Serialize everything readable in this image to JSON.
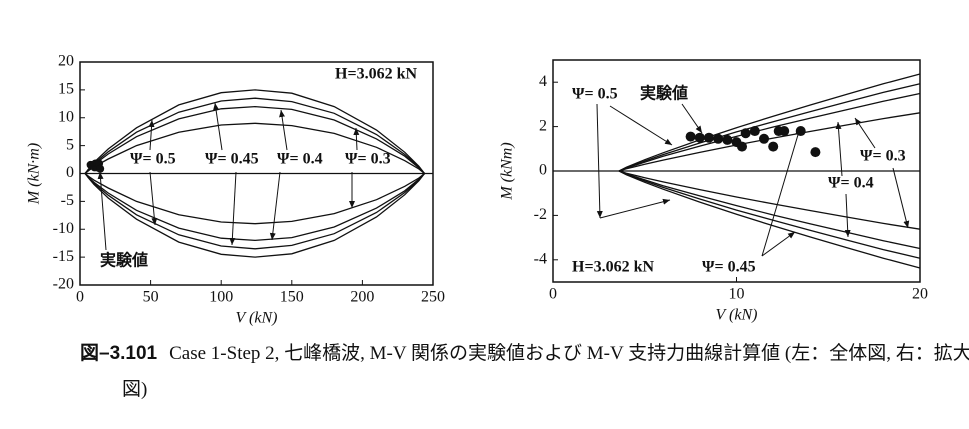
{
  "chart_data": [
    {
      "type": "line",
      "xlabel": "V (kN)",
      "ylabel": "M (kN·m)",
      "xlim": [
        0,
        250
      ],
      "ylim": [
        -20,
        20
      ],
      "xticks": [
        0,
        50,
        100,
        150,
        200,
        250
      ],
      "yticks": [
        -20,
        -15,
        -10,
        -5,
        0,
        5,
        10,
        15,
        20
      ],
      "x": [
        3.6,
        6,
        10,
        20,
        40,
        70,
        100,
        124,
        150,
        180,
        210,
        230,
        240,
        244
      ],
      "series": [
        {
          "color": "#111",
          "values": [
            0,
            0.8,
            2.0,
            4.4,
            8.2,
            12.3,
            14.5,
            15,
            14.4,
            12.0,
            7.8,
            3.8,
            1.3,
            0
          ]
        },
        {
          "color": "#111",
          "values": [
            0,
            0.7,
            1.8,
            3.9,
            7.4,
            11.0,
            13.0,
            13.5,
            12.9,
            10.8,
            7.0,
            3.4,
            1.2,
            0
          ]
        },
        {
          "color": "#111",
          "values": [
            0,
            0.7,
            1.6,
            3.5,
            6.6,
            9.8,
            11.6,
            12,
            11.5,
            9.6,
            6.2,
            3.1,
            1.0,
            0
          ]
        },
        {
          "color": "#111",
          "values": [
            0,
            0.5,
            1.2,
            2.6,
            5.0,
            7.4,
            8.7,
            9,
            8.6,
            7.2,
            4.7,
            2.3,
            0.8,
            0
          ]
        },
        {
          "color": "#111",
          "values": [
            0,
            -0.8,
            -2.0,
            -4.4,
            -8.2,
            -12.3,
            -14.5,
            -15,
            -14.4,
            -12.0,
            -7.8,
            -3.8,
            -1.3,
            0
          ]
        },
        {
          "color": "#111",
          "values": [
            0,
            -0.7,
            -1.8,
            -3.9,
            -7.4,
            -11.0,
            -13.0,
            -13.5,
            -12.9,
            -10.8,
            -7.0,
            -3.4,
            -1.2,
            0
          ]
        },
        {
          "color": "#111",
          "values": [
            0,
            -0.7,
            -1.6,
            -3.5,
            -6.6,
            -9.8,
            -11.6,
            -12,
            -11.5,
            -9.6,
            -6.2,
            -3.1,
            -1.0,
            0
          ]
        },
        {
          "color": "#111",
          "values": [
            0,
            -0.5,
            -1.2,
            -2.6,
            -5.0,
            -7.4,
            -8.7,
            -9,
            -8.6,
            -7.2,
            -4.7,
            -2.3,
            -0.8,
            0
          ]
        }
      ],
      "points": {
        "x": [
          7.5,
          8,
          8.5,
          9,
          9.5,
          10,
          10.3,
          10.5,
          11,
          11.5,
          12,
          12.3,
          12.6,
          13.5,
          14.3
        ],
        "y": [
          1.55,
          1.5,
          1.5,
          1.45,
          1.4,
          1.3,
          1.1,
          1.7,
          1.8,
          1.45,
          1.1,
          1.8,
          1.8,
          1.8,
          0.85
        ],
        "color": "#111"
      },
      "annotations": [
        "H=3.062 kN",
        "Ψ= 0.5",
        "Ψ= 0.45",
        "Ψ= 0.4",
        "Ψ= 0.3",
        "実験値"
      ]
    },
    {
      "type": "line",
      "xlabel": "V (kN)",
      "ylabel": "M (kNm)",
      "xlim": [
        0,
        20
      ],
      "ylim": [
        -5,
        5
      ],
      "xticks": [
        0,
        10,
        20
      ],
      "yticks": [
        -4,
        -2,
        0,
        2,
        4
      ],
      "x": [
        3.6,
        4,
        5,
        6,
        8,
        10,
        12,
        14,
        16,
        18,
        20
      ],
      "series": [
        {
          "color": "#111",
          "values": [
            0,
            0.17,
            0.51,
            0.82,
            1.4,
            1.95,
            2.47,
            2.97,
            3.45,
            3.93,
            4.37
          ]
        },
        {
          "color": "#111",
          "values": [
            0,
            0.15,
            0.45,
            0.74,
            1.26,
            1.76,
            2.22,
            2.67,
            3.11,
            3.54,
            3.93
          ]
        },
        {
          "color": "#111",
          "values": [
            0,
            0.13,
            0.4,
            0.66,
            1.12,
            1.56,
            1.98,
            2.38,
            2.76,
            3.14,
            3.49
          ]
        },
        {
          "color": "#111",
          "values": [
            0,
            0.1,
            0.3,
            0.49,
            0.84,
            1.17,
            1.48,
            1.78,
            2.07,
            2.36,
            2.62
          ]
        },
        {
          "color": "#111",
          "values": [
            0,
            -0.17,
            -0.51,
            -0.82,
            -1.4,
            -1.95,
            -2.47,
            -2.97,
            -3.45,
            -3.93,
            -4.37
          ]
        },
        {
          "color": "#111",
          "values": [
            0,
            -0.15,
            -0.45,
            -0.74,
            -1.26,
            -1.76,
            -2.22,
            -2.67,
            -3.11,
            -3.54,
            -3.93
          ]
        },
        {
          "color": "#111",
          "values": [
            0,
            -0.13,
            -0.4,
            -0.66,
            -1.12,
            -1.56,
            -1.98,
            -2.38,
            -2.76,
            -3.14,
            -3.49
          ]
        },
        {
          "color": "#111",
          "values": [
            0,
            -0.1,
            -0.3,
            -0.49,
            -0.84,
            -1.17,
            -1.48,
            -1.78,
            -2.07,
            -2.36,
            -2.62
          ]
        }
      ],
      "points": {
        "x": [
          7.5,
          8,
          8.5,
          9,
          9.5,
          10,
          10.3,
          10.5,
          11,
          11.5,
          12,
          12.3,
          12.6,
          13.5,
          14.3
        ],
        "y": [
          1.55,
          1.5,
          1.5,
          1.45,
          1.4,
          1.3,
          1.1,
          1.7,
          1.8,
          1.45,
          1.1,
          1.8,
          1.8,
          1.8,
          0.85
        ],
        "color": "#111"
      },
      "annotations": [
        "Ψ= 0.5",
        "実験値",
        "Ψ= 0.3",
        "Ψ= 0.4",
        "Ψ= 0.45",
        "H=3.062 kN"
      ]
    }
  ],
  "caption": {
    "label": "図–3.101",
    "text": "Case 1-Step 2, 七峰橋波, M-V 関係の実験値および M-V 支持力曲線計算値 (左：全体図, 右：拡大図)"
  }
}
